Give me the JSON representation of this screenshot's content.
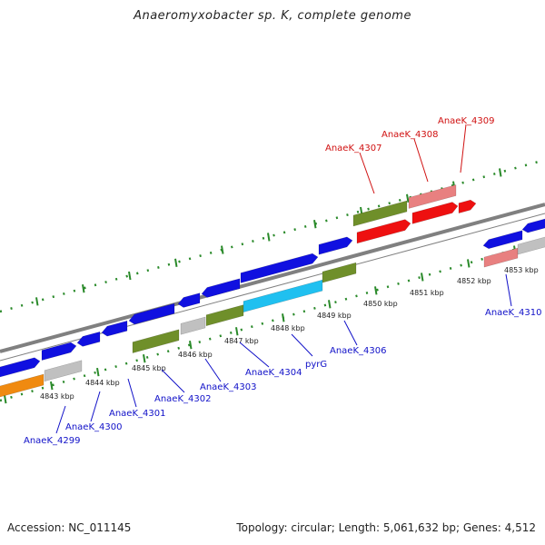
{
  "title": "Anaeromyxobacter sp. K, complete genome",
  "footer": {
    "accession": "Accession: NC_011145",
    "topology": "Topology: circular; Length: 5,061,632 bp; Genes: 4,512"
  },
  "colors": {
    "forward_cds": "#1010e0",
    "reverse_cds_olive": "#6f8f2a",
    "pseudo_grey": "#c0c0c0",
    "highlight_red": "#ee1010",
    "highlight_pink": "#e88080",
    "cyan_gene": "#20c0f0",
    "orange_gene": "#f08a10",
    "backbone": "#808080",
    "tick_green": "#2a8a2a",
    "label_blue": "#1010c8",
    "label_red": "#d01010"
  },
  "kbp_ticks": [
    "4843 kbp",
    "4844 kbp",
    "4845 kbp",
    "4846 kbp",
    "4847 kbp",
    "4848 kbp",
    "4849 kbp",
    "4850 kbp",
    "4851 kbp",
    "4852 kbp",
    "4853 kbp"
  ],
  "gene_labels_bottom": [
    "AnaeK_4299",
    "AnaeK_4300",
    "AnaeK_4301",
    "AnaeK_4302",
    "AnaeK_4303",
    "AnaeK_4304",
    "pyrG",
    "AnaeK_4306",
    "AnaeK_4310"
  ],
  "gene_labels_top": [
    "AnaeK_4307",
    "AnaeK_4308",
    "AnaeK_4309"
  ]
}
